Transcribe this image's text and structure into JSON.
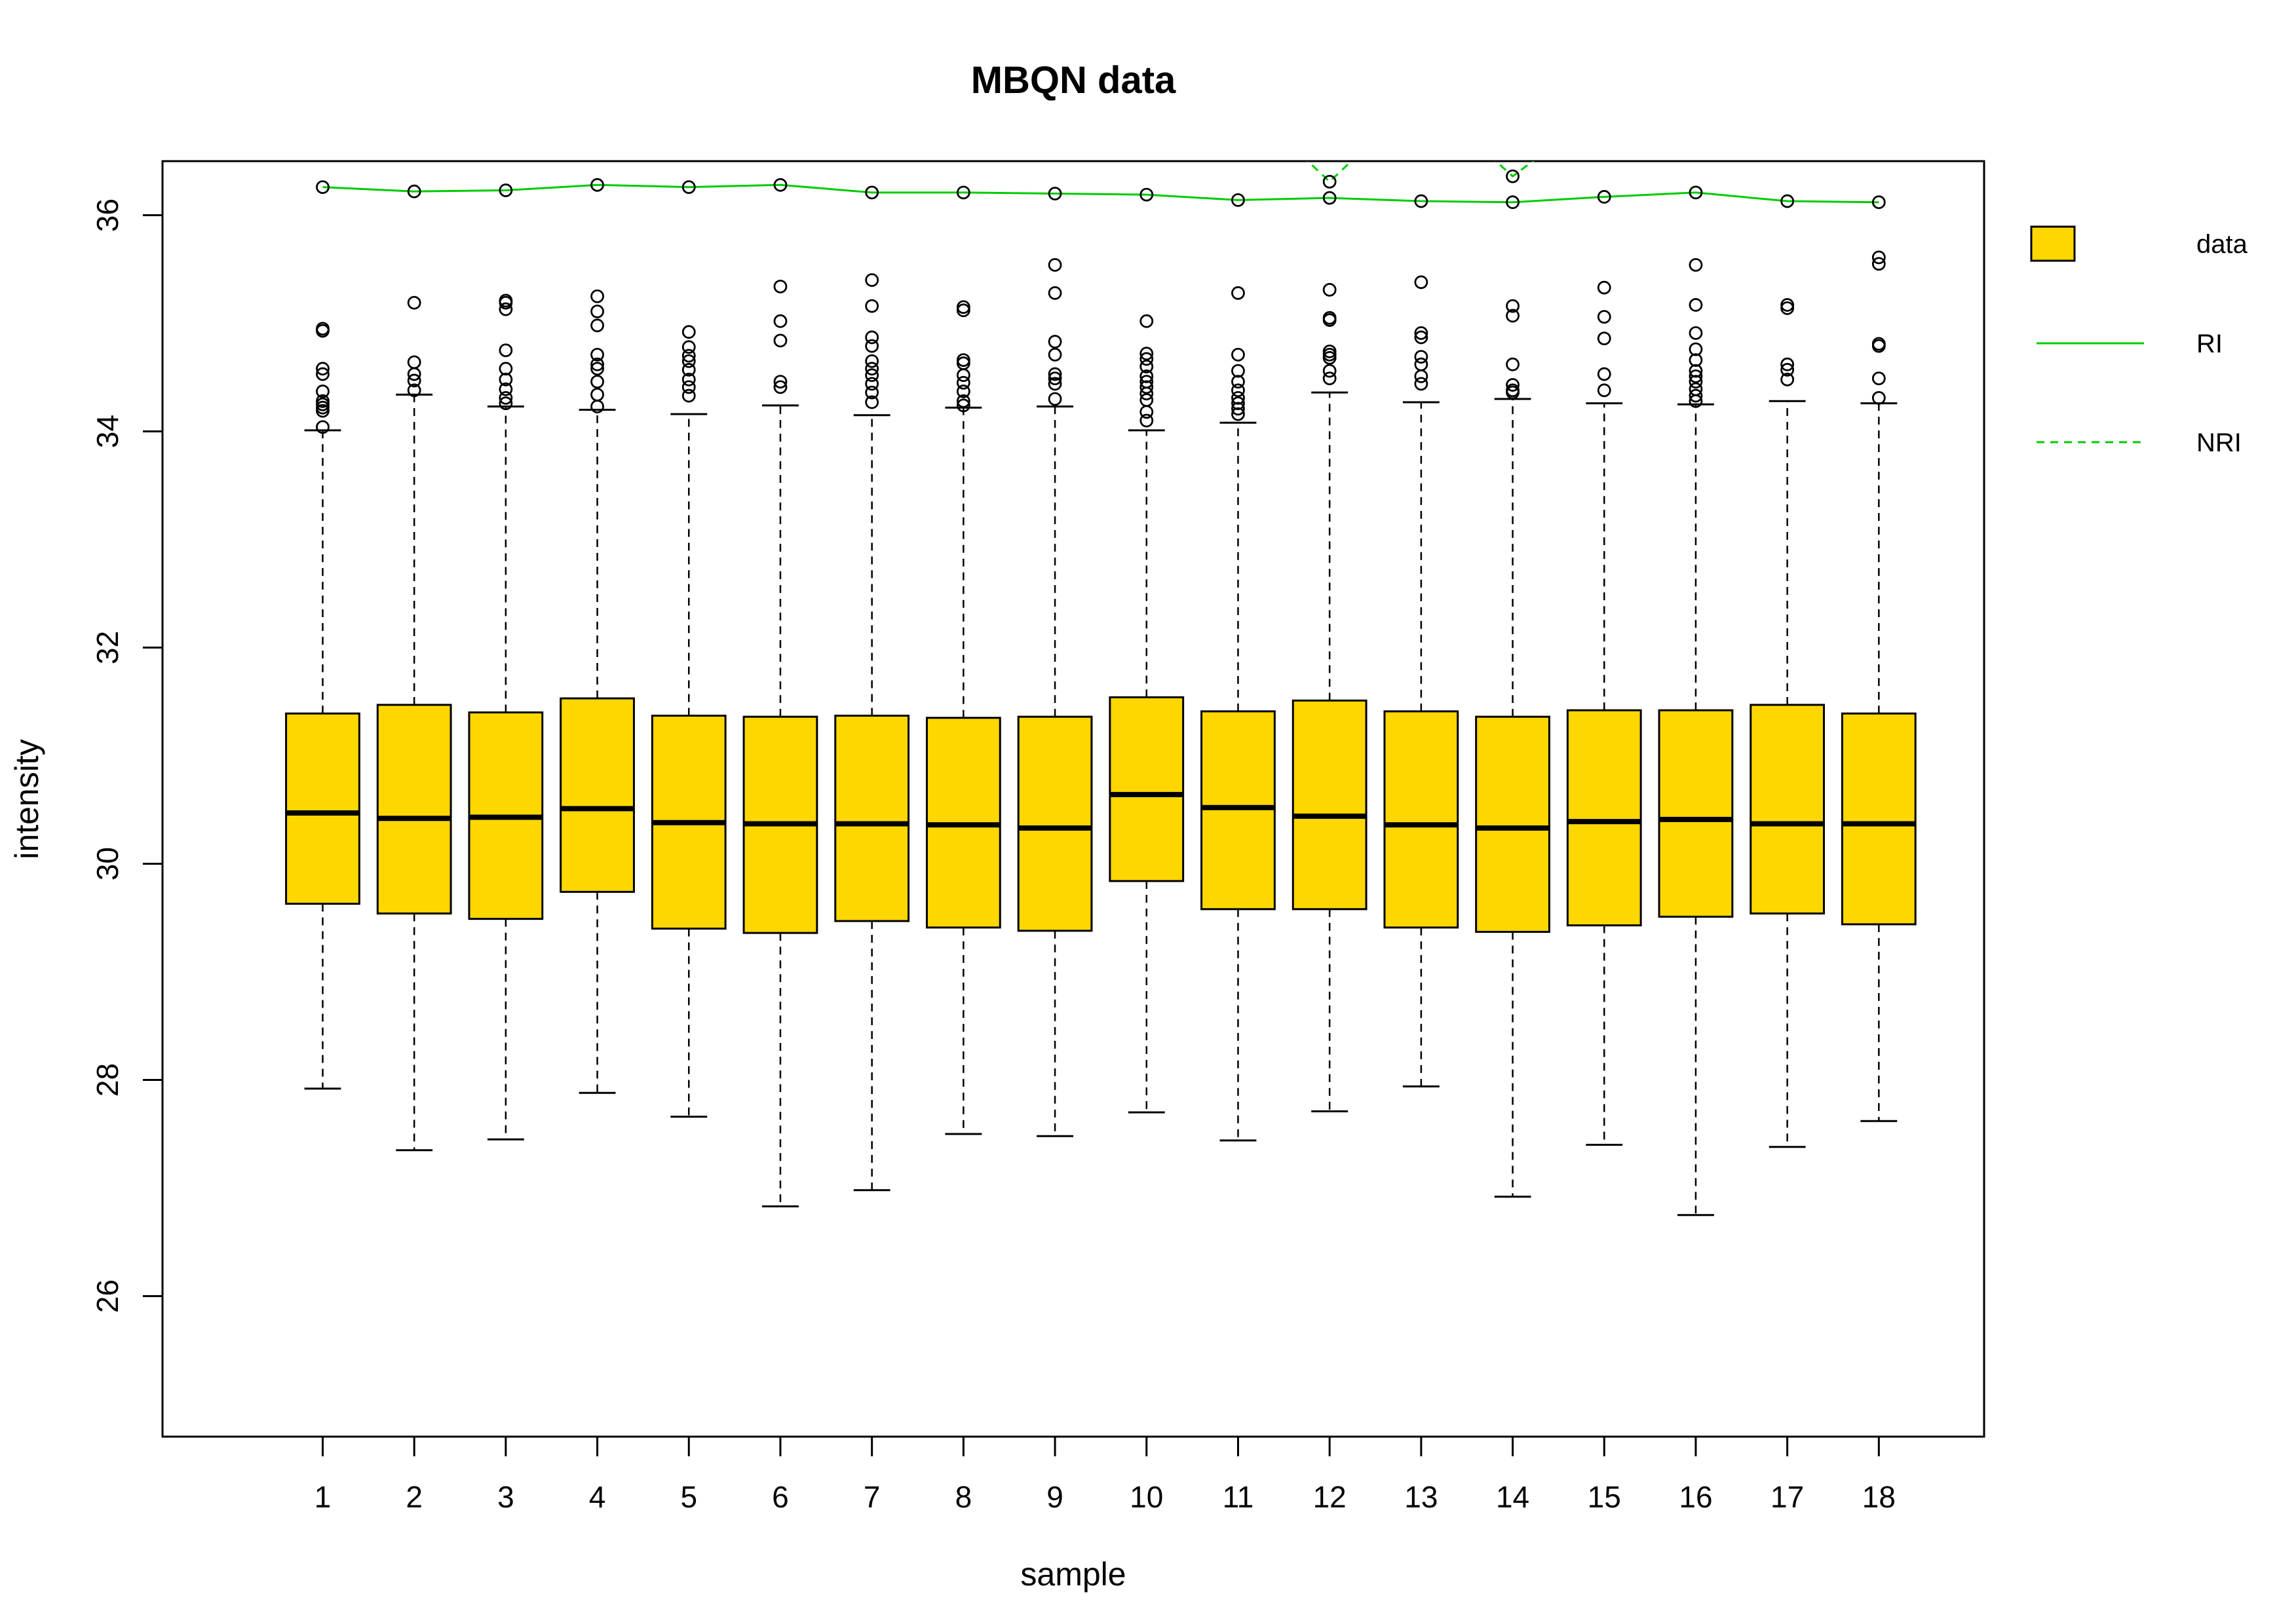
{
  "chart_data": {
    "type": "boxplot",
    "title": "MBQN data",
    "xlabel": "sample",
    "ylabel": "intensity",
    "ylim": [
      24.7,
      36.5
    ],
    "xlim": [
      -0.75,
      19.15
    ],
    "y_ticks": [
      26,
      28,
      30,
      32,
      34,
      36
    ],
    "categories": [
      "1",
      "2",
      "3",
      "4",
      "5",
      "6",
      "7",
      "8",
      "9",
      "10",
      "11",
      "12",
      "13",
      "14",
      "15",
      "16",
      "17",
      "18"
    ],
    "box_fill": "#FFD700",
    "line_color": "#00CC00",
    "grid": false,
    "legend": {
      "position": "right",
      "items": [
        {
          "label": "data",
          "kind": "box"
        },
        {
          "label": "RI",
          "kind": "solid-line"
        },
        {
          "label": "NRI",
          "kind": "dashed-line"
        }
      ]
    },
    "boxes": [
      {
        "sample": "1",
        "lower_whisker": 27.92,
        "q1": 29.63,
        "median": 30.47,
        "q3": 31.39,
        "upper_whisker": 34.01,
        "outliers": [
          34.04,
          34.19,
          34.22,
          34.25,
          34.28,
          34.37,
          34.53,
          34.58,
          34.93,
          34.95
        ]
      },
      {
        "sample": "2",
        "lower_whisker": 27.35,
        "q1": 29.54,
        "median": 30.42,
        "q3": 31.47,
        "upper_whisker": 34.34,
        "outliers": [
          34.38,
          34.47,
          34.53,
          34.64,
          35.19
        ]
      },
      {
        "sample": "3",
        "lower_whisker": 27.45,
        "q1": 29.49,
        "median": 30.43,
        "q3": 31.4,
        "upper_whisker": 34.23,
        "outliers": [
          34.26,
          34.31,
          34.39,
          34.48,
          34.58,
          34.75,
          35.13,
          35.19,
          35.21
        ]
      },
      {
        "sample": "4",
        "lower_whisker": 27.88,
        "q1": 29.74,
        "median": 30.51,
        "q3": 31.53,
        "upper_whisker": 34.2,
        "outliers": [
          34.23,
          34.34,
          34.46,
          34.58,
          34.62,
          34.71,
          34.98,
          35.11,
          35.25
        ]
      },
      {
        "sample": "5",
        "lower_whisker": 27.66,
        "q1": 29.4,
        "median": 30.38,
        "q3": 31.37,
        "upper_whisker": 34.16,
        "outliers": [
          34.33,
          34.41,
          34.48,
          34.57,
          34.65,
          34.7,
          34.78,
          34.92
        ]
      },
      {
        "sample": "6",
        "lower_whisker": 26.83,
        "q1": 29.36,
        "median": 30.37,
        "q3": 31.36,
        "upper_whisker": 34.24,
        "outliers": [
          34.41,
          34.46,
          34.84,
          35.02,
          35.34
        ]
      },
      {
        "sample": "7",
        "lower_whisker": 26.98,
        "q1": 29.47,
        "median": 30.37,
        "q3": 31.37,
        "upper_whisker": 34.15,
        "outliers": [
          34.27,
          34.36,
          34.44,
          34.52,
          34.58,
          34.65,
          34.79,
          34.87,
          35.16,
          35.4
        ]
      },
      {
        "sample": "8",
        "lower_whisker": 27.5,
        "q1": 29.41,
        "median": 30.36,
        "q3": 31.35,
        "upper_whisker": 34.22,
        "outliers": [
          34.24,
          34.28,
          34.37,
          34.45,
          34.52,
          34.63,
          34.66,
          35.12,
          35.15
        ]
      },
      {
        "sample": "9",
        "lower_whisker": 27.48,
        "q1": 29.38,
        "median": 30.33,
        "q3": 31.36,
        "upper_whisker": 34.23,
        "outliers": [
          34.3,
          34.44,
          34.49,
          34.53,
          34.71,
          34.83,
          35.28,
          35.54
        ]
      },
      {
        "sample": "10",
        "lower_whisker": 27.7,
        "q1": 29.84,
        "median": 30.64,
        "q3": 31.54,
        "upper_whisker": 34.01,
        "outliers": [
          34.1,
          34.18,
          34.29,
          34.35,
          34.41,
          34.46,
          34.51,
          34.6,
          34.67,
          34.72,
          35.02
        ]
      },
      {
        "sample": "11",
        "lower_whisker": 27.44,
        "q1": 29.58,
        "median": 30.52,
        "q3": 31.41,
        "upper_whisker": 34.08,
        "outliers": [
          34.16,
          34.21,
          34.26,
          34.31,
          34.38,
          34.46,
          34.56,
          34.71,
          35.28
        ]
      },
      {
        "sample": "12",
        "lower_whisker": 27.71,
        "q1": 29.58,
        "median": 30.44,
        "q3": 31.51,
        "upper_whisker": 34.36,
        "outliers": [
          34.49,
          34.56,
          34.68,
          34.71,
          34.74,
          35.03,
          35.05,
          35.31
        ]
      },
      {
        "sample": "13",
        "lower_whisker": 27.94,
        "q1": 29.41,
        "median": 30.36,
        "q3": 31.41,
        "upper_whisker": 34.27,
        "outliers": [
          34.44,
          34.51,
          34.62,
          34.69,
          34.87,
          34.91,
          35.38
        ]
      },
      {
        "sample": "14",
        "lower_whisker": 26.92,
        "q1": 29.37,
        "median": 30.33,
        "q3": 31.36,
        "upper_whisker": 34.3,
        "outliers": [
          34.36,
          34.38,
          34.43,
          34.62,
          35.07,
          35.16
        ]
      },
      {
        "sample": "15",
        "lower_whisker": 27.4,
        "q1": 29.43,
        "median": 30.39,
        "q3": 31.42,
        "upper_whisker": 34.26,
        "outliers": [
          34.38,
          34.53,
          34.86,
          35.06,
          35.33
        ]
      },
      {
        "sample": "16",
        "lower_whisker": 26.75,
        "q1": 29.51,
        "median": 30.41,
        "q3": 31.42,
        "upper_whisker": 34.25,
        "outliers": [
          34.28,
          34.33,
          34.39,
          34.46,
          34.51,
          34.56,
          34.66,
          34.76,
          34.91,
          35.17,
          35.54
        ]
      },
      {
        "sample": "17",
        "lower_whisker": 27.38,
        "q1": 29.54,
        "median": 30.37,
        "q3": 31.47,
        "upper_whisker": 34.28,
        "outliers": [
          34.48,
          34.57,
          34.62,
          35.14,
          35.17
        ]
      },
      {
        "sample": "18",
        "lower_whisker": 27.62,
        "q1": 29.44,
        "median": 30.37,
        "q3": 31.39,
        "upper_whisker": 34.26,
        "outliers": [
          34.31,
          34.49,
          34.79,
          34.81,
          35.55,
          35.61
        ]
      }
    ],
    "series": [
      {
        "name": "RI",
        "style": "solid",
        "markers": true,
        "values": [
          36.26,
          36.22,
          36.23,
          36.28,
          36.26,
          36.28,
          36.21,
          36.21,
          36.2,
          36.19,
          36.14,
          36.16,
          36.13,
          36.12,
          36.17,
          36.21,
          36.13,
          36.12
        ]
      },
      {
        "name": "NRI",
        "style": "dashed",
        "markers": true,
        "segments": [
          {
            "x": [
              11.7,
              12.0,
              12.3
            ],
            "y": [
              36.55,
              36.31,
              36.55
            ]
          },
          {
            "x": [
              13.75,
              14.0,
              14.3
            ],
            "y": [
              36.55,
              36.36,
              36.55
            ]
          }
        ]
      }
    ]
  }
}
